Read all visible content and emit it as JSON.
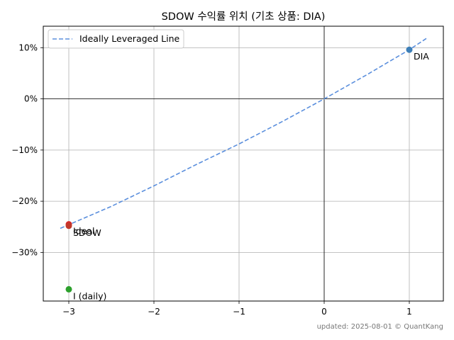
{
  "chart_data": {
    "type": "scatter",
    "title": "SDOW 수익률 위치 (기초 상품: DIA)",
    "xlim": [
      -3.3,
      1.4
    ],
    "ylim": [
      -39.5,
      14.2
    ],
    "x_ticks": [
      -3,
      -2,
      -1,
      0,
      1
    ],
    "x_tick_labels": [
      "−3",
      "−2",
      "−1",
      "0",
      "1"
    ],
    "y_ticks": [
      10,
      0,
      -10,
      -20,
      -30
    ],
    "y_tick_labels": [
      "10%",
      "0%",
      "−10%",
      "−20%",
      "−30%"
    ],
    "grid": true,
    "legend_position": "top-left",
    "ideal_line": {
      "name": "Ideally Leveraged Line",
      "style": "dashed",
      "color": "#5b8fdd",
      "x_range": [
        -3.1,
        1.2
      ],
      "points": [
        [
          -3.1,
          -25.3
        ],
        [
          -2.5,
          -21.0
        ],
        [
          -2.0,
          -17.0
        ],
        [
          -1.5,
          -12.8
        ],
        [
          -1.0,
          -8.8
        ],
        [
          -0.5,
          -4.5
        ],
        [
          0.0,
          0.0
        ],
        [
          0.5,
          4.7
        ],
        [
          1.0,
          9.6
        ],
        [
          1.2,
          11.8
        ]
      ]
    },
    "points": [
      {
        "label": "DIA",
        "x": 1,
        "y": 9.6,
        "color": "#3d7fb8",
        "label_pos": "below-right"
      },
      {
        "label": "Ideal",
        "x": -3,
        "y": -24.5,
        "color": "#d62728",
        "label_pos": "below-right"
      },
      {
        "label": "SDOW",
        "x": -3,
        "y": -24.8,
        "color": "#c0392b",
        "label_pos": "below-right"
      },
      {
        "label": "I (daily)",
        "x": -3,
        "y": -37.2,
        "color": "#2ca02c",
        "label_pos": "below-right"
      }
    ],
    "reference_lines": {
      "x": 0,
      "y": 0
    }
  },
  "footer": "updated: 2025-08-01 © QuantKang"
}
